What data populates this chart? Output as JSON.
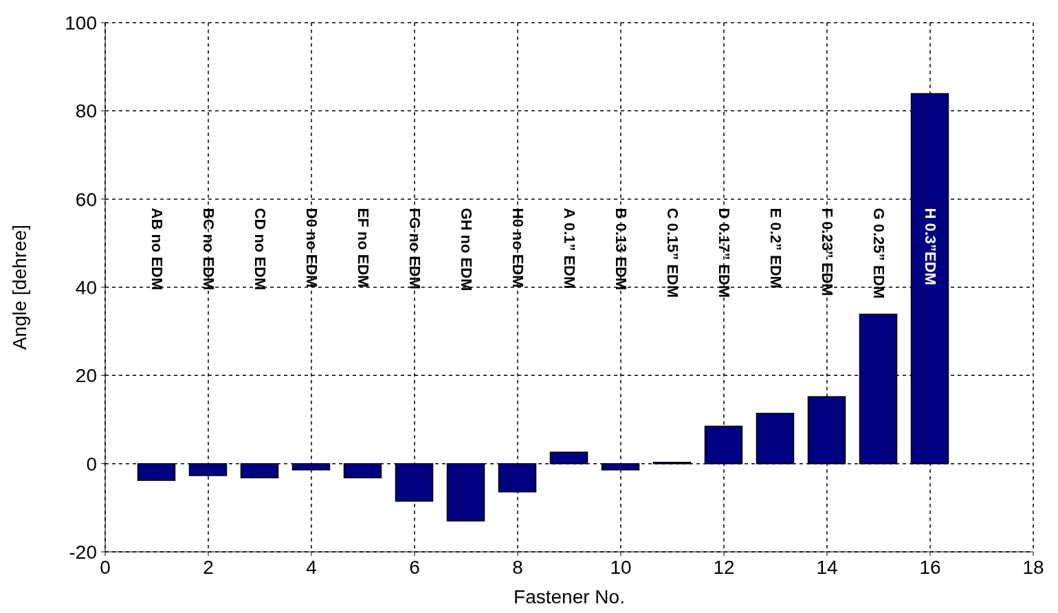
{
  "chart_data": {
    "type": "bar",
    "xlabel": "Fastener No.",
    "ylabel": "Angle [dehree]",
    "x": [
      1,
      2,
      3,
      4,
      5,
      6,
      7,
      8,
      9,
      10,
      11,
      12,
      13,
      14,
      15,
      16
    ],
    "values": [
      -3.8,
      -2.7,
      -3.2,
      -1.4,
      -3.2,
      -8.5,
      -13,
      -6.4,
      2.6,
      -1.4,
      0.3,
      8.5,
      11.4,
      15.2,
      33.9,
      83.9
    ],
    "color": "#000080",
    "xlim": [
      0,
      18
    ],
    "xticks": [
      0,
      2,
      4,
      6,
      8,
      10,
      12,
      14,
      16,
      18
    ],
    "ylim": [
      -20,
      100
    ],
    "yticks": [
      -20,
      0,
      20,
      40,
      60,
      80,
      100
    ],
    "grid": true,
    "annotations": [
      "AB no EDM",
      "BC no EDM",
      "CD no EDM",
      "D0 no EDM",
      "EF no EDM",
      "FG no EDM",
      "GH no EDM",
      "H0 no EDM",
      "A 0.1” EDM",
      "B 0.13 EDM",
      "C 0.15” EDM",
      "D 0.17” EDM",
      "E 0.2” EDM",
      "F 0.23” EDM",
      "G 0.25” EDM",
      "H 0.3”EDM"
    ]
  }
}
